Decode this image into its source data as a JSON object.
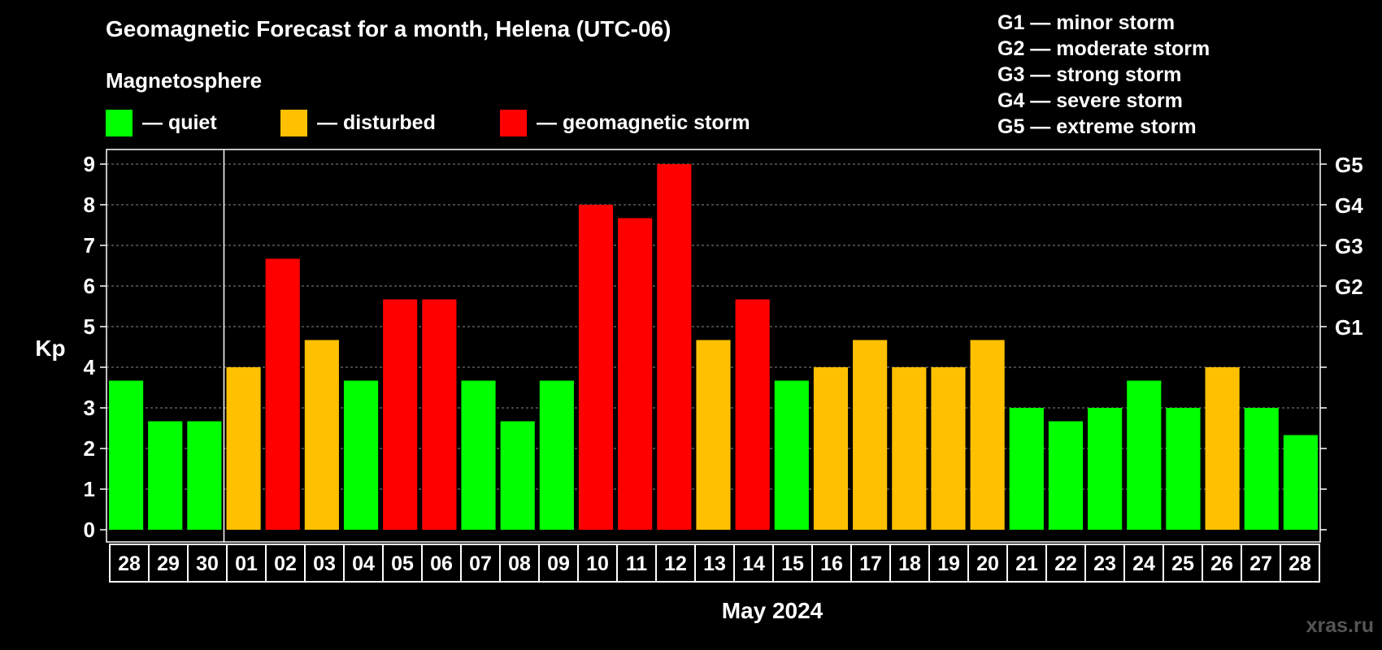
{
  "title": "Geomagnetic Forecast for a month, Helena (UTC-06)",
  "magnetosphere_label": "Magnetosphere",
  "legend": [
    {
      "label": "— quiet",
      "color": "#00ff00"
    },
    {
      "label": "— disturbed",
      "color": "#ffc000"
    },
    {
      "label": "— geomagnetic storm",
      "color": "#ff0000"
    }
  ],
  "g_scale": [
    "G1 — minor storm",
    "G2 — moderate storm",
    "G3 — strong storm",
    "G4 — severe storm",
    "G5 — extreme storm"
  ],
  "month_label": "May 2024",
  "watermark": "xras.ru",
  "chart_data": {
    "type": "bar",
    "ylabel": "Kp",
    "ylim": [
      0,
      9
    ],
    "yticks": [
      0,
      1,
      2,
      3,
      4,
      5,
      6,
      7,
      8,
      9
    ],
    "right_axis_labels": [
      {
        "value": 5,
        "label": "G1"
      },
      {
        "value": 6,
        "label": "G2"
      },
      {
        "value": 7,
        "label": "G3"
      },
      {
        "value": 8,
        "label": "G4"
      },
      {
        "value": 9,
        "label": "G5"
      }
    ],
    "grid": "dashed horizontal",
    "categories": [
      "28",
      "29",
      "30",
      "01",
      "02",
      "03",
      "04",
      "05",
      "06",
      "07",
      "08",
      "09",
      "10",
      "11",
      "12",
      "13",
      "14",
      "15",
      "16",
      "17",
      "18",
      "19",
      "20",
      "21",
      "22",
      "23",
      "24",
      "25",
      "26",
      "27",
      "28"
    ],
    "values": [
      3.67,
      2.67,
      2.67,
      4,
      6.67,
      4.67,
      3.67,
      5.67,
      5.67,
      3.67,
      2.67,
      3.67,
      8,
      7.67,
      9,
      4.67,
      5.67,
      3.67,
      4,
      4.67,
      4,
      4,
      4.67,
      3,
      2.67,
      3,
      3.67,
      3,
      4,
      3,
      2.33
    ],
    "status": [
      "quiet",
      "quiet",
      "quiet",
      "disturbed",
      "storm",
      "disturbed",
      "quiet",
      "storm",
      "storm",
      "quiet",
      "quiet",
      "quiet",
      "storm",
      "storm",
      "storm",
      "disturbed",
      "storm",
      "quiet",
      "disturbed",
      "disturbed",
      "disturbed",
      "disturbed",
      "disturbed",
      "quiet",
      "quiet",
      "quiet",
      "quiet",
      "quiet",
      "disturbed",
      "quiet",
      "quiet"
    ],
    "colors": {
      "quiet": "#00ff00",
      "disturbed": "#ffc000",
      "storm": "#ff0000"
    }
  }
}
